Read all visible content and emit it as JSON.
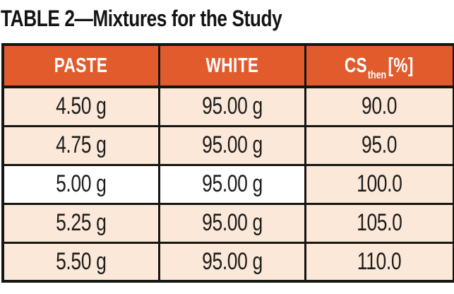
{
  "title": "TABLE 2—Mixtures for the Study",
  "table": {
    "header": {
      "paste": "PASTE",
      "white": "WHITE",
      "cs": {
        "base": "CS",
        "sub": "then",
        "suffix": "[%]"
      }
    },
    "rows": [
      {
        "paste": "4.50 g",
        "white": "95.00 g",
        "cs_then": "90.0",
        "highlight": false
      },
      {
        "paste": "4.75 g",
        "white": "95.00 g",
        "cs_then": "95.0",
        "highlight": false
      },
      {
        "paste": "5.00 g",
        "white": "95.00 g",
        "cs_then": "100.0",
        "highlight": true
      },
      {
        "paste": "5.25 g",
        "white": "95.00 g",
        "cs_then": "105.0",
        "highlight": false
      },
      {
        "paste": "5.50 g",
        "white": "95.00 g",
        "cs_then": "110.0",
        "highlight": false
      }
    ],
    "colors": {
      "header_bg": "#e15b2d",
      "row_bg": "#fbe8d9",
      "highlight_bg": "#ffffff",
      "border": "#161512",
      "header_text": "#ffffff",
      "body_text": "#1d1d1b"
    }
  }
}
